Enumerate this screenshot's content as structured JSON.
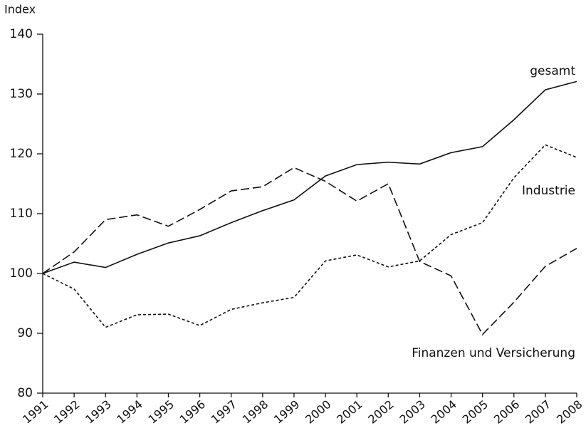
{
  "chart_data": {
    "type": "line",
    "ylabel": "Index",
    "categories": [
      "1991",
      "1992",
      "1993",
      "1994",
      "1995",
      "1996",
      "1997",
      "1998",
      "1999",
      "2000",
      "2001",
      "2002",
      "2003",
      "2004",
      "2005",
      "2006",
      "2007",
      "2008"
    ],
    "series": [
      {
        "name": "gesamt",
        "color": "#111111",
        "dash": "none",
        "values": [
          100,
          101.9,
          101,
          103.2,
          105.1,
          106.3,
          108.5,
          110.5,
          112.3,
          116.3,
          118.2,
          118.6,
          118.3,
          120.2,
          121.2,
          125.7,
          130.7,
          132.1
        ]
      },
      {
        "name": "Industrie",
        "color": "#111111",
        "dash": "4,3",
        "values": [
          100,
          97.4,
          91,
          93.1,
          93.2,
          91.3,
          94,
          95.1,
          96,
          102.1,
          103.1,
          101.1,
          102.1,
          106.5,
          108.5,
          116,
          121.5,
          119.4
        ]
      },
      {
        "name": "Finanzen und Versicherung",
        "color": "#111111",
        "dash": "12,5",
        "values": [
          100,
          103.6,
          109,
          109.8,
          107.9,
          110.7,
          113.8,
          114.5,
          117.7,
          115.4,
          112.1,
          115,
          102,
          99.6,
          89.8,
          95.2,
          101.2,
          104.2
        ]
      }
    ],
    "ylim": [
      80,
      140
    ],
    "yticks": [
      80,
      90,
      100,
      110,
      120,
      130,
      140
    ],
    "grid": false
  }
}
